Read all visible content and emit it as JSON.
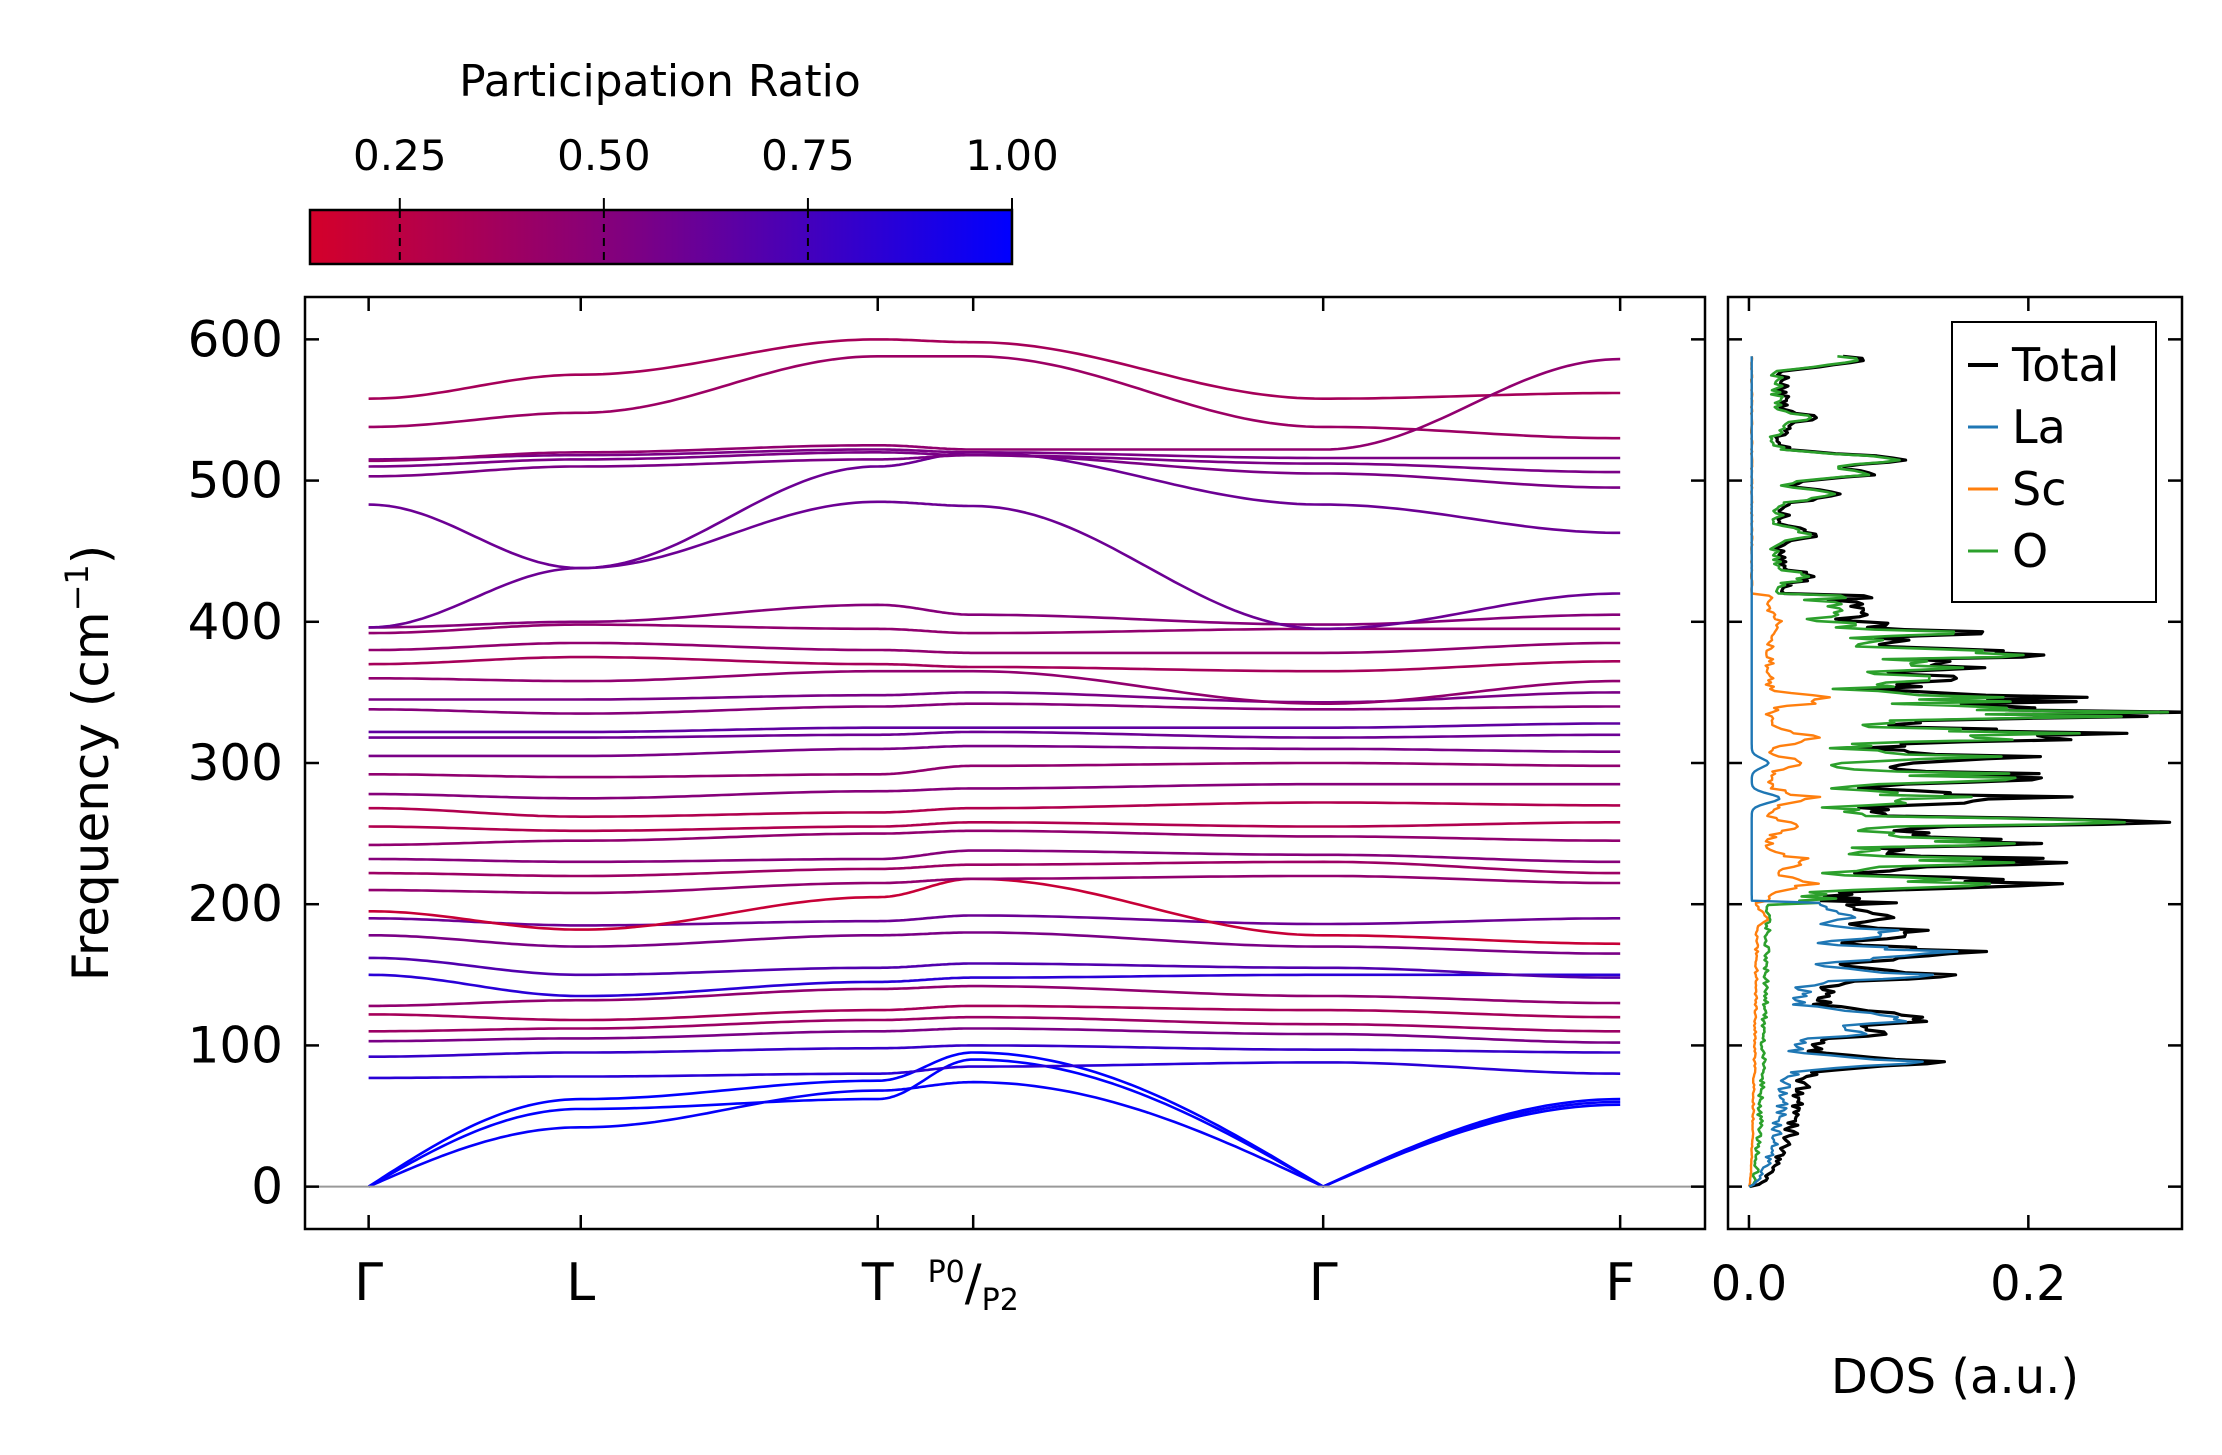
{
  "chart_data": [
    {
      "type": "colorbar",
      "title": "Participation Ratio",
      "ticks": [
        0.25,
        0.5,
        0.75,
        1.0
      ],
      "tick_labels": [
        "0.25",
        "0.50",
        "0.75",
        "1.00"
      ],
      "range": [
        0.14,
        1.0
      ],
      "colors": [
        "#d4002a",
        "#800080",
        "#0000ff"
      ]
    },
    {
      "type": "line",
      "subtype": "phonon-band-structure",
      "ylabel": "Frequency (cm",
      "ylabel_sup": "−1",
      "ylabel_close": ")",
      "ylim": [
        -30,
        630
      ],
      "yticks": [
        0,
        100,
        200,
        300,
        400,
        500,
        600
      ],
      "ytick_labels": [
        "0",
        "100",
        "200",
        "300",
        "400",
        "500",
        "600"
      ],
      "kpoints": [
        {
          "label": "Γ",
          "x": 0
        },
        {
          "label": "L",
          "x": 1
        },
        {
          "label": "T",
          "x": 2.4
        },
        {
          "label": "P0/P2",
          "display": "P",
          "sub1": "0",
          "sep": "/",
          "sub2": "P",
          "sub3": "2",
          "x": 2.85
        },
        {
          "label": "Γ",
          "x": 4.5
        },
        {
          "label": "F",
          "x": 5.9
        }
      ],
      "xlim": [
        -0.3,
        6.3
      ],
      "zero_line": 0,
      "bands": [
        {
          "f": [
            0,
            62,
            75,
            95,
            0,
            62
          ],
          "pr": 1.0
        },
        {
          "f": [
            0,
            55,
            62,
            90,
            0,
            58
          ],
          "pr": 1.0
        },
        {
          "f": [
            0,
            42,
            68,
            74,
            0,
            60
          ],
          "pr": 0.98
        },
        {
          "f": [
            77,
            78,
            80,
            85,
            88,
            80
          ],
          "pr": 0.85
        },
        {
          "f": [
            92,
            95,
            98,
            100,
            97,
            95
          ],
          "pr": 0.8
        },
        {
          "f": [
            103,
            105,
            110,
            112,
            108,
            102
          ],
          "pr": 0.55
        },
        {
          "f": [
            110,
            112,
            118,
            120,
            115,
            110
          ],
          "pr": 0.4
        },
        {
          "f": [
            122,
            118,
            125,
            128,
            125,
            120
          ],
          "pr": 0.35
        },
        {
          "f": [
            128,
            132,
            140,
            142,
            135,
            130
          ],
          "pr": 0.45
        },
        {
          "f": [
            150,
            135,
            145,
            148,
            150,
            150
          ],
          "pr": 0.85
        },
        {
          "f": [
            162,
            150,
            155,
            158,
            155,
            148
          ],
          "pr": 0.7
        },
        {
          "f": [
            178,
            170,
            178,
            180,
            170,
            165
          ],
          "pr": 0.55
        },
        {
          "f": [
            190,
            185,
            188,
            192,
            186,
            190
          ],
          "pr": 0.6
        },
        {
          "f": [
            195,
            182,
            205,
            218,
            178,
            172
          ],
          "pr": 0.2
        },
        {
          "f": [
            210,
            208,
            215,
            218,
            220,
            215
          ],
          "pr": 0.45
        },
        {
          "f": [
            222,
            220,
            225,
            228,
            230,
            222
          ],
          "pr": 0.4
        },
        {
          "f": [
            232,
            230,
            232,
            238,
            235,
            230
          ],
          "pr": 0.5
        },
        {
          "f": [
            242,
            245,
            250,
            252,
            248,
            245
          ],
          "pr": 0.45
        },
        {
          "f": [
            255,
            252,
            255,
            258,
            255,
            258
          ],
          "pr": 0.3
        },
        {
          "f": [
            268,
            262,
            265,
            268,
            272,
            270
          ],
          "pr": 0.3
        },
        {
          "f": [
            278,
            275,
            280,
            282,
            285,
            285
          ],
          "pr": 0.5
        },
        {
          "f": [
            292,
            290,
            292,
            298,
            300,
            298
          ],
          "pr": 0.45
        },
        {
          "f": [
            305,
            305,
            310,
            312,
            310,
            308
          ],
          "pr": 0.55
        },
        {
          "f": [
            318,
            318,
            320,
            322,
            318,
            320
          ],
          "pr": 0.6
        },
        {
          "f": [
            322,
            322,
            325,
            325,
            325,
            328
          ],
          "pr": 0.65
        },
        {
          "f": [
            338,
            335,
            340,
            342,
            338,
            340
          ],
          "pr": 0.5
        },
        {
          "f": [
            345,
            345,
            348,
            350,
            343,
            350
          ],
          "pr": 0.55
        },
        {
          "f": [
            360,
            358,
            365,
            365,
            342,
            358
          ],
          "pr": 0.45
        },
        {
          "f": [
            370,
            375,
            370,
            368,
            365,
            372
          ],
          "pr": 0.35
        },
        {
          "f": [
            380,
            385,
            380,
            378,
            378,
            385
          ],
          "pr": 0.45
        },
        {
          "f": [
            392,
            398,
            395,
            392,
            395,
            395
          ],
          "pr": 0.45
        },
        {
          "f": [
            396,
            400,
            412,
            405,
            398,
            405
          ],
          "pr": 0.5
        },
        {
          "f": [
            396,
            438,
            485,
            482,
            395,
            420
          ],
          "pr": 0.6
        },
        {
          "f": [
            483,
            438,
            510,
            520,
            483,
            463
          ],
          "pr": 0.6
        },
        {
          "f": [
            503,
            510,
            515,
            518,
            505,
            495
          ],
          "pr": 0.55
        },
        {
          "f": [
            510,
            515,
            520,
            518,
            512,
            506
          ],
          "pr": 0.55
        },
        {
          "f": [
            515,
            518,
            522,
            520,
            516,
            516
          ],
          "pr": 0.55
        },
        {
          "f": [
            538,
            548,
            588,
            588,
            538,
            530
          ],
          "pr": 0.4
        },
        {
          "f": [
            558,
            575,
            600,
            598,
            558,
            562
          ],
          "pr": 0.35
        },
        {
          "f": [
            514,
            520,
            525,
            522,
            522,
            586
          ],
          "pr": 0.45
        }
      ]
    },
    {
      "type": "line",
      "subtype": "density-of-states",
      "xlabel": "DOS (a.u.)",
      "xlim": [
        -0.015,
        0.31
      ],
      "xticks": [
        0.0,
        0.2
      ],
      "xtick_labels": [
        "0.0",
        "0.2"
      ],
      "legend": "top-right",
      "series": [
        {
          "name": "Total",
          "color": "#000000"
        },
        {
          "name": "La",
          "color": "#1f77b4"
        },
        {
          "name": "Sc",
          "color": "#ff7f0e"
        },
        {
          "name": "O",
          "color": "#2ca02c"
        }
      ]
    }
  ]
}
